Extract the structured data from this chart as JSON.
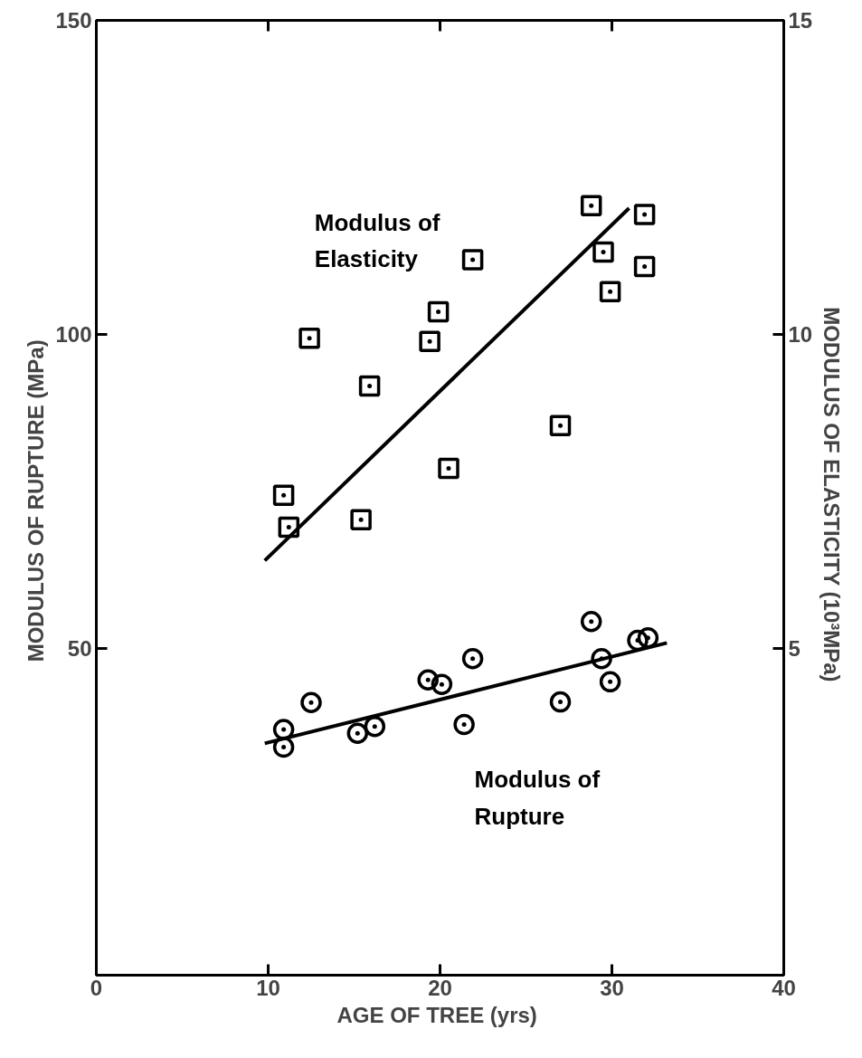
{
  "chart_data": {
    "type": "scatter",
    "xlabel": "AGE OF TREE  (yrs)",
    "ylabel": "MODULUS OF RUPTURE  (MPa)",
    "y2label": "MODULUS OF ELASTICITY  (10³MPa)",
    "xlim": [
      0,
      40
    ],
    "xticks": [
      0,
      10,
      20,
      30,
      40
    ],
    "ylim": [
      -2,
      150
    ],
    "yticks": [
      50,
      100,
      150
    ],
    "y2lim": [
      -0.2,
      15
    ],
    "y2ticks": [
      5,
      10,
      15
    ],
    "grid": false,
    "series": [
      {
        "name": "Modulus of Elasticity",
        "axis": "y2",
        "marker": "square",
        "color": "#000000",
        "x": [
          28.8,
          31.9,
          21.9,
          29.5,
          31.9,
          29.9,
          19.9,
          12.4,
          19.4,
          15.9,
          27.0,
          20.5,
          10.9,
          11.2,
          15.4
        ],
        "values": [
          12.05,
          11.91,
          11.19,
          11.31,
          11.08,
          10.68,
          10.36,
          9.94,
          9.89,
          9.18,
          8.55,
          7.87,
          7.44,
          6.93,
          7.05
        ]
      },
      {
        "type": "line",
        "axis": "y2",
        "line_style": "solid",
        "color": "#000000",
        "x": [
          9.8,
          31.0
        ],
        "values": [
          6.4,
          12.01
        ]
      },
      {
        "name": "Modulus of Rupture",
        "marker": "circle",
        "color": "#000000",
        "x": [
          10.9,
          10.9,
          12.5,
          15.2,
          16.2,
          19.3,
          20.1,
          21.4,
          21.9,
          27.0,
          28.8,
          29.4,
          29.9,
          31.5,
          32.1
        ],
        "values": [
          37.1,
          34.3,
          41.4,
          36.5,
          37.6,
          45.0,
          44.3,
          37.9,
          48.4,
          41.5,
          54.3,
          48.4,
          44.7,
          51.3,
          51.7
        ]
      },
      {
        "type": "line",
        "line_style": "solid",
        "color": "#000000",
        "x": [
          9.8,
          33.2
        ],
        "values": [
          34.9,
          50.9
        ]
      }
    ]
  }
}
